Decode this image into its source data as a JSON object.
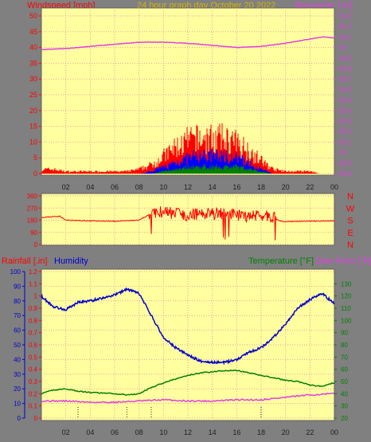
{
  "title": "24 hour graph day   October 20 2022",
  "colors": {
    "background": "#808080",
    "plot_bg": "#ffffa0",
    "grid": "#e6a0a0",
    "title": "#d4b400",
    "wind": "#ff0000",
    "gust_mid": "#0000ff",
    "gust_low": "#008000",
    "barometer": "#e040e0",
    "rain": "#ff0000",
    "humidity": "#0000cc",
    "temperature": "#008000",
    "dewpoint": "#e040e0",
    "axis_left": "#0000cc",
    "axis_right": "#008000"
  },
  "time_labels": [
    "02",
    "04",
    "06",
    "08",
    "10",
    "12",
    "14",
    "16",
    "18",
    "20",
    "22",
    "00"
  ],
  "chart_data": [
    {
      "id": "wind_barometer",
      "type": "line",
      "left_label": "Windspeed [mph]",
      "right_label": "Barometer [.in]",
      "ylim_left": [
        0,
        50
      ],
      "left_ticks": [
        "0",
        "5",
        "10",
        "15",
        "20",
        "25",
        "30",
        "35",
        "40",
        "45",
        "50"
      ],
      "ylim_right": [
        28.8,
        30.3
      ],
      "right_ticks": [
        "28.8",
        "28.9",
        "29",
        "29.1",
        "29.2",
        "29.3",
        "29.4",
        "29.5",
        "29.6",
        "29.7",
        "29.8",
        "29.9",
        "30",
        "30.1",
        "30.2",
        "30.3"
      ],
      "x_range_hours": [
        0,
        24
      ],
      "barometer": {
        "x": [
          0,
          2,
          4,
          6,
          8,
          10,
          12,
          14,
          16,
          18,
          20,
          22,
          23,
          24
        ],
        "y": [
          29.98,
          29.99,
          30.01,
          30.03,
          30.05,
          30.05,
          30.04,
          30.02,
          30.0,
          30.01,
          30.04,
          30.08,
          30.1,
          30.09
        ]
      },
      "wind_envelope": {
        "x": [
          0,
          1,
          2,
          3,
          4,
          5,
          6,
          7,
          8,
          9,
          10,
          11,
          12,
          13,
          14,
          15,
          16,
          17,
          18,
          19,
          20,
          21,
          22,
          23,
          24
        ],
        "peak": [
          2,
          2,
          1,
          1,
          1,
          1,
          1,
          1,
          2,
          4,
          8,
          12,
          15,
          16,
          16,
          16,
          14,
          11,
          6,
          2,
          1,
          1,
          1,
          0,
          0
        ],
        "mid": [
          0,
          0,
          0,
          0,
          0,
          0,
          0,
          0,
          0,
          1,
          3,
          5,
          7,
          8,
          8,
          8,
          7,
          5,
          2,
          0,
          0,
          0,
          0,
          0,
          0
        ],
        "low": [
          0,
          0,
          0,
          0,
          0,
          0,
          0,
          0,
          0,
          0,
          1,
          2,
          3,
          3,
          3,
          3,
          3,
          2,
          1,
          0,
          0,
          0,
          0,
          0,
          0
        ]
      }
    },
    {
      "id": "wind_direction",
      "type": "line",
      "left_ticks": [
        "0",
        "90",
        "180",
        "270",
        "360"
      ],
      "ylim": [
        0,
        360
      ],
      "right_labels": [
        "N",
        "W",
        "S",
        "E",
        "N"
      ],
      "x_range_hours": [
        0,
        24
      ],
      "direction": {
        "x": [
          0,
          1.5,
          2,
          4,
          6,
          8,
          9,
          10,
          11,
          12,
          13,
          14,
          15,
          16,
          17,
          18,
          19,
          19.5,
          20,
          22,
          24
        ],
        "y": [
          200,
          210,
          180,
          175,
          172,
          180,
          230,
          240,
          230,
          220,
          225,
          230,
          225,
          220,
          210,
          215,
          200,
          175,
          170,
          172,
          175
        ]
      }
    },
    {
      "id": "rain_humidity_temp",
      "type": "line",
      "labels": {
        "rain": "Rainfall [.in]",
        "humidity": "Humidity",
        "temperature": "Temperature [°F]",
        "dewpoint": "Dew Point [°F]"
      },
      "ylim_humidity": [
        0,
        100
      ],
      "humidity_ticks": [
        "0",
        "10",
        "20",
        "30",
        "40",
        "50",
        "60",
        "70",
        "80",
        "90",
        "100"
      ],
      "ylim_rain": [
        0,
        1.2
      ],
      "rain_ticks": [
        "0",
        "0.1",
        "0.2",
        "0.3",
        "0.4",
        "0.5",
        "0.6",
        "0.7",
        "0.8",
        "0.9",
        "1",
        "1.1",
        "1.2"
      ],
      "ylim_temp": [
        20,
        140
      ],
      "temp_ticks": [
        "20",
        "30",
        "40",
        "50",
        "60",
        "70",
        "80",
        "90",
        "100",
        "110",
        "120",
        "130"
      ],
      "x_range_hours": [
        0,
        24
      ],
      "humidity": {
        "x": [
          0,
          1,
          2,
          3,
          4,
          6,
          7,
          8,
          9,
          10,
          11,
          12,
          13,
          14,
          15,
          16,
          17,
          18,
          19,
          20,
          21,
          22,
          23,
          24
        ],
        "y": [
          83,
          76,
          74,
          79,
          80,
          84,
          88,
          85,
          70,
          55,
          48,
          43,
          39,
          38,
          38,
          40,
          45,
          48,
          55,
          64,
          75,
          81,
          85,
          78
        ]
      },
      "temperature": {
        "x": [
          0,
          1,
          2,
          3,
          4,
          6,
          7,
          8,
          9,
          10,
          11,
          12,
          13,
          14,
          15,
          16,
          17,
          18,
          19,
          20,
          21,
          22,
          23,
          24
        ],
        "y": [
          40,
          43,
          44,
          42,
          41,
          40,
          39,
          40,
          45,
          49,
          52,
          55,
          57,
          58,
          59,
          59,
          57,
          55,
          53,
          51,
          50,
          47,
          46,
          49
        ]
      },
      "dewpoint": {
        "x": [
          0,
          2,
          4,
          6,
          8,
          10,
          12,
          14,
          16,
          18,
          20,
          22,
          24
        ],
        "y": [
          34,
          34,
          33,
          33,
          34,
          35,
          34,
          34,
          35,
          35,
          37,
          39,
          40
        ]
      },
      "rain_markers_hours": [
        3,
        7,
        9,
        18
      ]
    }
  ]
}
